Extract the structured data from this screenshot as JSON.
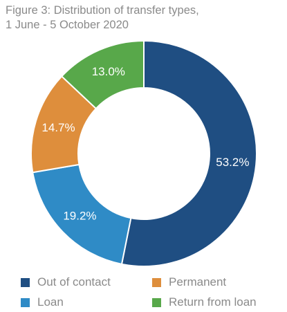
{
  "chart_data": {
    "type": "pie",
    "variant": "donut",
    "title": "Figure 3: Distribution of transfer types,",
    "subtitle": "1 June - 5 October 2020",
    "categories": [
      "Out of contact",
      "Loan",
      "Permanent",
      "Return from loan"
    ],
    "values": [
      53.2,
      19.2,
      14.7,
      13.0
    ],
    "value_labels": [
      "53.2%",
      "19.2%",
      "14.7%",
      "13.0%"
    ],
    "units": "%",
    "colors": [
      "#1f4e82",
      "#2f8bc6",
      "#de8e3c",
      "#58a84a"
    ],
    "start_angle": "12 o'clock",
    "direction": "clockwise",
    "legend": {
      "placement": "bottom",
      "columns": 2,
      "order": [
        "Out of contact",
        "Permanent",
        "Loan",
        "Return from loan"
      ]
    }
  }
}
